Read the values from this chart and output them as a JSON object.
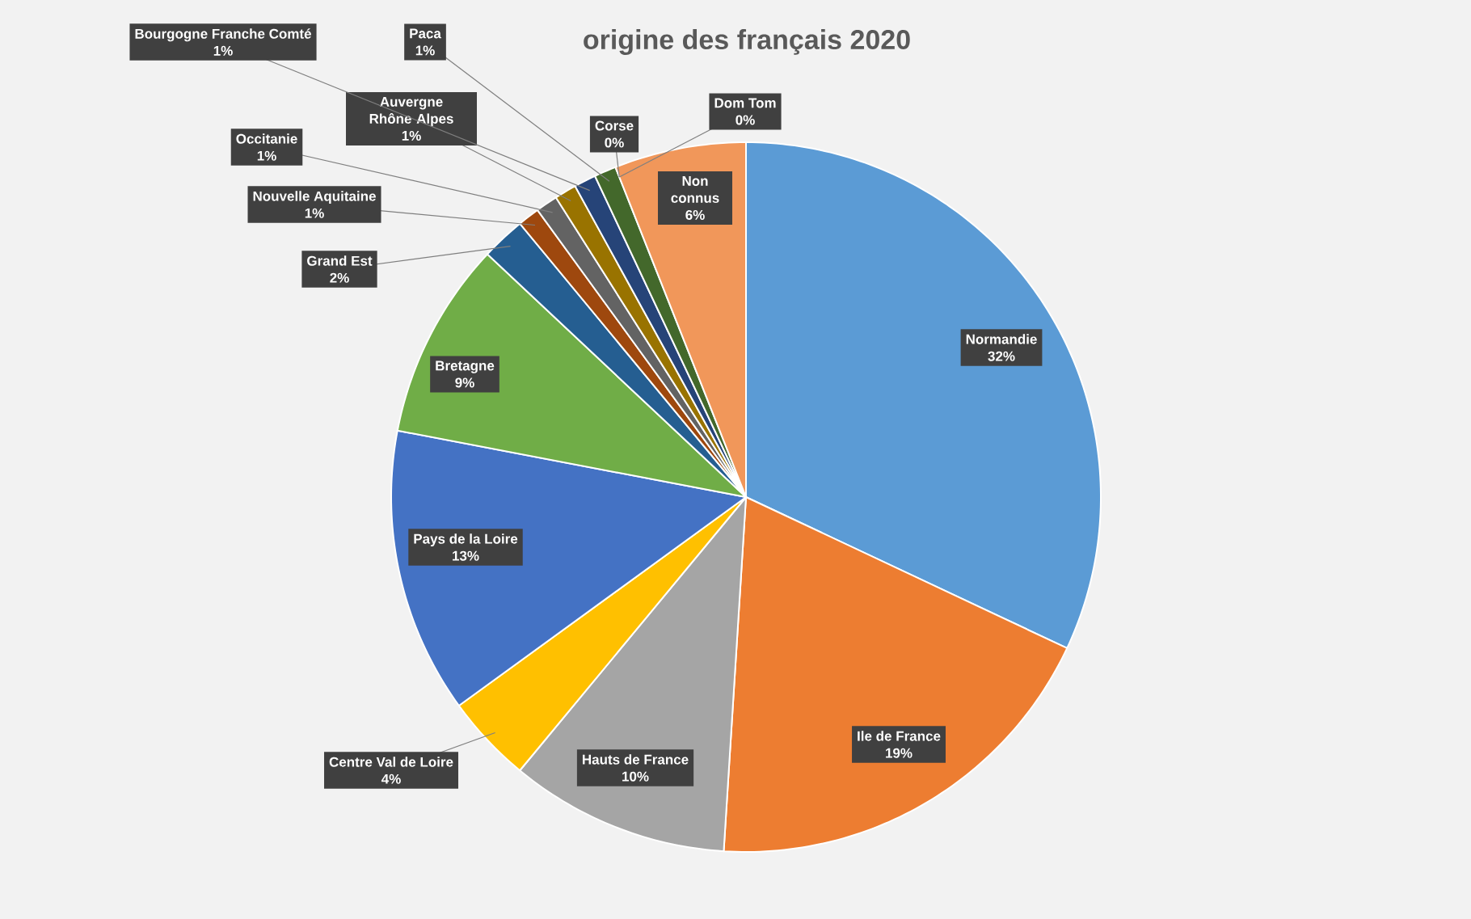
{
  "chart_data": {
    "type": "pie",
    "title": "origine des français 2020",
    "categories": [
      "Normandie",
      "Ile de France",
      "Hauts de France",
      "Centre Val de Loire",
      "Pays de la Loire",
      "Bretagne",
      "Grand Est",
      "Nouvelle Aquitaine",
      "Occitanie",
      "Auvergne Rhône Alpes",
      "Bourgogne Franche Comté",
      "Paca",
      "Corse",
      "Dom Tom",
      "Non connus"
    ],
    "values": [
      32,
      19,
      10,
      4,
      13,
      9,
      2,
      1,
      1,
      1,
      1,
      1,
      0,
      0,
      6
    ],
    "value_labels": [
      "32%",
      "19%",
      "10%",
      "4%",
      "13%",
      "9%",
      "2%",
      "1%",
      "1%",
      "1%",
      "1%",
      "1%",
      "0%",
      "0%",
      "6%"
    ],
    "colors": [
      "#5b9bd5",
      "#ed7d31",
      "#a5a5a5",
      "#ffc000",
      "#4472c4",
      "#70ad47",
      "#255e91",
      "#9e480e",
      "#636363",
      "#997300",
      "#264478",
      "#43682b",
      "#698ed0",
      "#f1975a",
      "#f1975a"
    ]
  }
}
